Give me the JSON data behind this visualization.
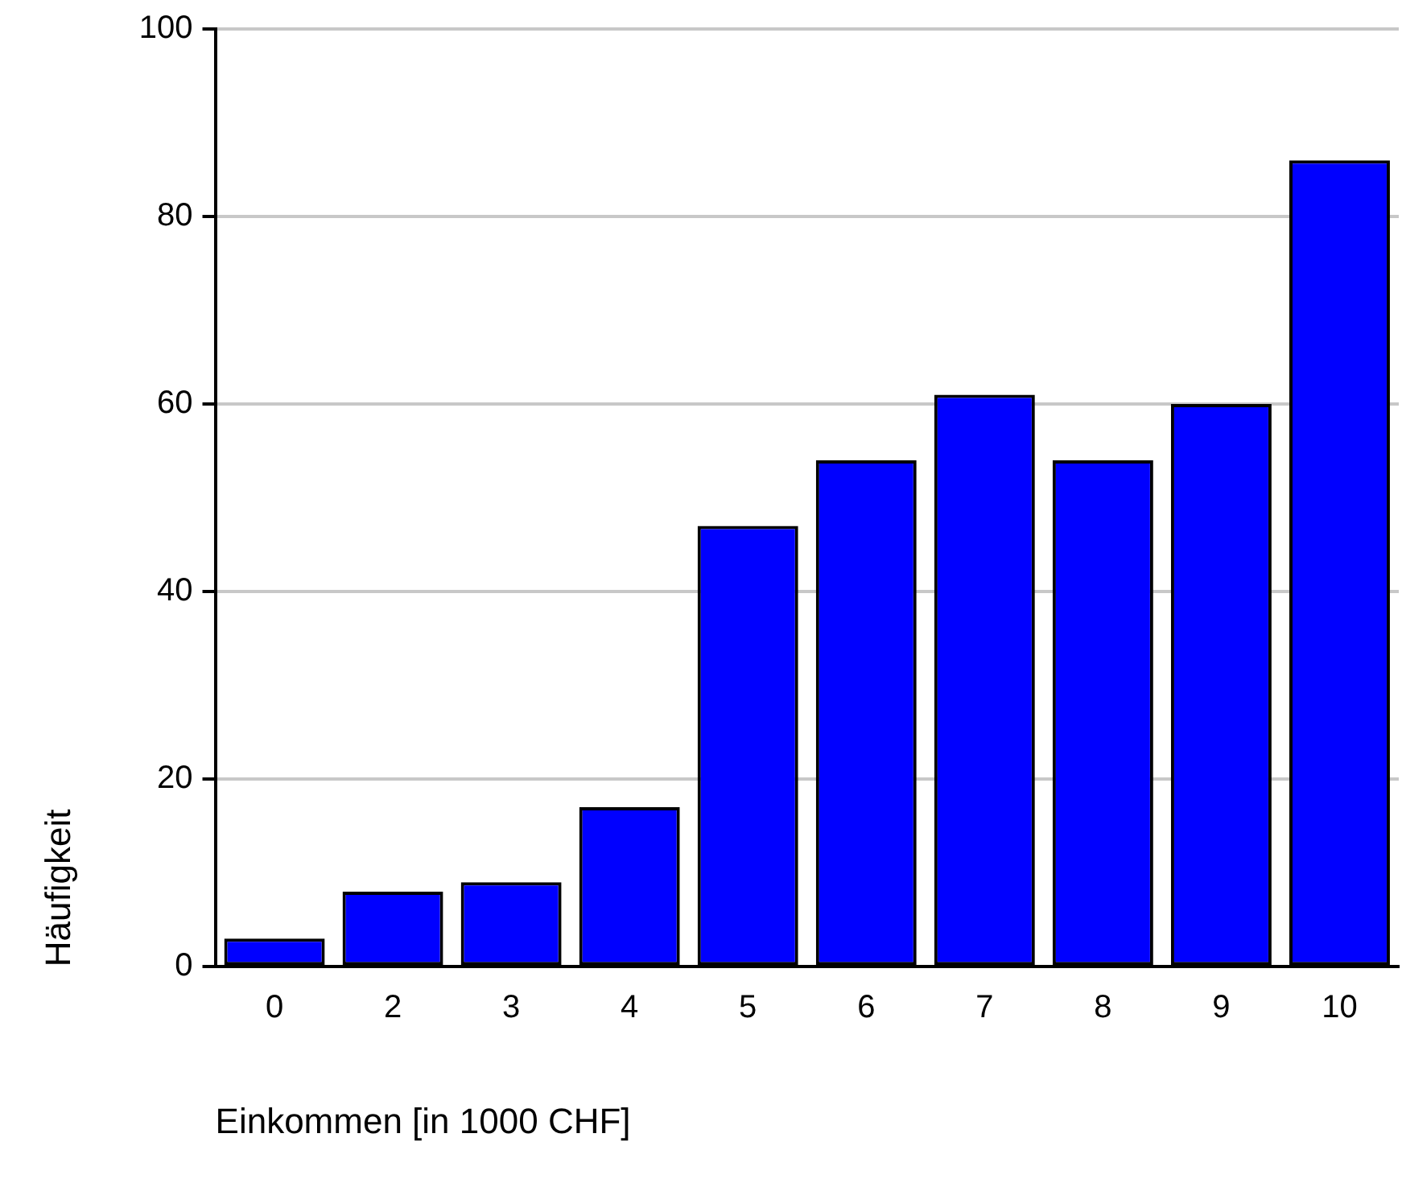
{
  "chart_data": {
    "type": "bar",
    "xlabel": "Einkommen [in 1000 CHF]",
    "ylabel": "Häufigkeit",
    "categories": [
      "0",
      "2",
      "3",
      "4",
      "5",
      "6",
      "7",
      "8",
      "9",
      "10"
    ],
    "values": [
      3,
      8,
      9,
      17,
      47,
      54,
      61,
      54,
      60,
      86
    ],
    "color": "#0000ff",
    "ylim": [
      0,
      100
    ],
    "yticks": [
      0,
      20,
      40,
      60,
      80,
      100
    ],
    "grid": "y",
    "legend": false
  }
}
